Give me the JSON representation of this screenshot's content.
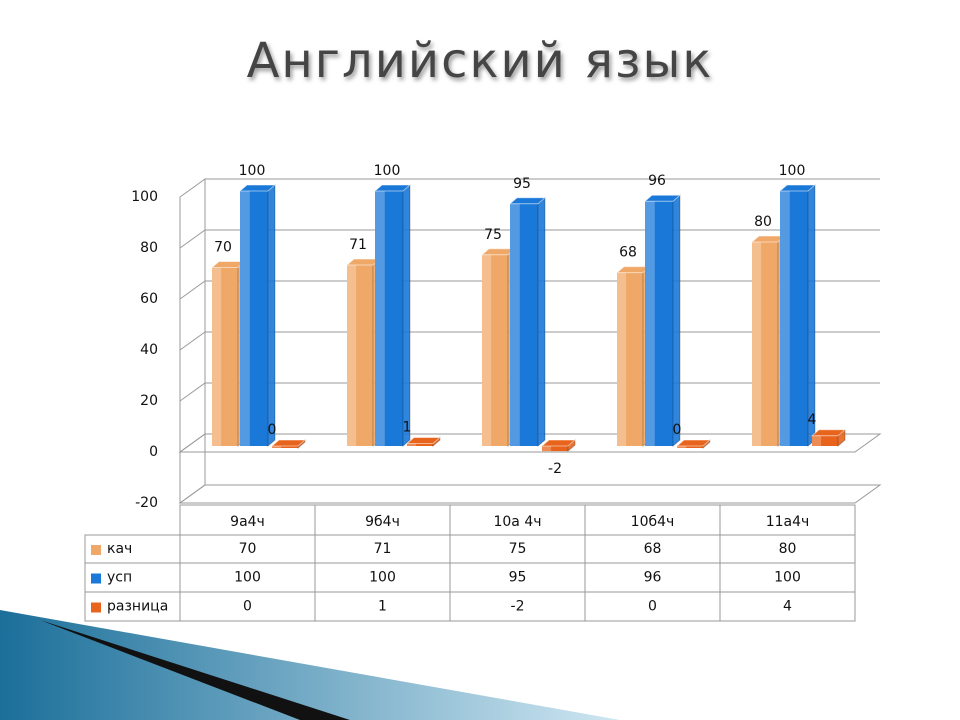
{
  "chart_data": {
    "type": "bar",
    "title": "Английский язык",
    "categories": [
      "9а4ч",
      "9б4ч",
      "10а 4ч",
      "10б4ч",
      "11а4ч"
    ],
    "series": [
      {
        "name": "кач",
        "color": "#f0a868",
        "values": [
          70,
          71,
          75,
          68,
          80
        ]
      },
      {
        "name": "усп",
        "color": "#1a78d8",
        "values": [
          100,
          100,
          95,
          96,
          100
        ]
      },
      {
        "name": "разница",
        "color": "#e8641c",
        "values": [
          0,
          1,
          -2,
          0,
          4
        ]
      }
    ],
    "ylim": [
      -20,
      100
    ],
    "yticks": [
      -20,
      0,
      20,
      40,
      60,
      80,
      100
    ],
    "grid": true,
    "data_table": true
  }
}
